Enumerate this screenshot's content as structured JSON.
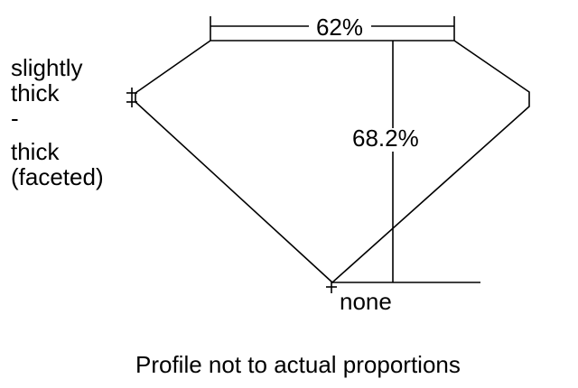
{
  "labels": {
    "table_percent": "62%",
    "depth_percent": "68.2%",
    "culet": "none",
    "girdle_lines": [
      "slightly",
      "thick",
      "-",
      "thick",
      "(faceted)"
    ],
    "caption": "Profile not to actual proportions"
  },
  "colors": {
    "line": "#000000",
    "background": "#ffffff"
  }
}
